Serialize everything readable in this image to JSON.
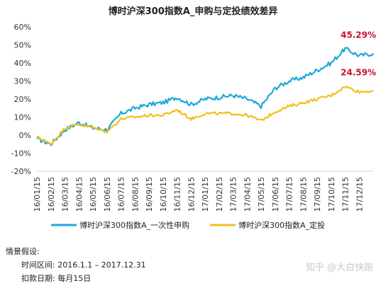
{
  "chart_data": {
    "type": "line",
    "title": "博时沪深300指数A_申购与定投绩效差异",
    "xlabel": "",
    "ylabel": "",
    "ylim": [
      -0.2,
      0.6
    ],
    "yticks": [
      "60%",
      "50%",
      "40%",
      "30%",
      "20%",
      "10%",
      "0%",
      "-10%",
      "-20%"
    ],
    "grid": false,
    "legend_position": "bottom",
    "x": [
      "16/01/15",
      "16/02/15",
      "16/03/15",
      "16/04/15",
      "16/05/15",
      "16/06/15",
      "16/07/15",
      "16/08/15",
      "16/09/15",
      "16/10/15",
      "16/11/15",
      "16/12/15",
      "17/01/15",
      "17/02/15",
      "17/03/15",
      "17/04/15",
      "17/05/15",
      "17/06/15",
      "17/07/15",
      "17/08/15",
      "17/09/15",
      "17/10/15",
      "17/11/15",
      "17/12/15",
      "17/12/31"
    ],
    "xtick_labels": [
      "16/01/15",
      "16/02/15",
      "16/03/15",
      "16/04/15",
      "16/05/15",
      "16/06/15",
      "16/07/15",
      "16/08/15",
      "16/09/15",
      "16/10/15",
      "16/11/15",
      "16/12/15",
      "17/01/15",
      "17/02/15",
      "17/03/15",
      "17/04/15",
      "17/05/15",
      "17/06/15",
      "17/07/15",
      "17/08/15",
      "17/09/15",
      "17/10/15",
      "17/11/15",
      "17/12/15"
    ],
    "series": [
      {
        "name": "博时沪深300指数A_一次性申购",
        "color": "#1fa8d8",
        "values": [
          -0.02,
          -0.05,
          0.03,
          0.07,
          0.04,
          0.03,
          0.12,
          0.15,
          0.17,
          0.18,
          0.21,
          0.17,
          0.2,
          0.21,
          0.22,
          0.2,
          0.16,
          0.26,
          0.3,
          0.32,
          0.36,
          0.4,
          0.48,
          0.44,
          0.4529
        ]
      },
      {
        "name": "博时沪深300指数A_定投",
        "color": "#f2c01e",
        "values": [
          -0.01,
          -0.05,
          0.04,
          0.06,
          0.04,
          0.02,
          0.09,
          0.1,
          0.11,
          0.11,
          0.14,
          0.09,
          0.12,
          0.12,
          0.12,
          0.11,
          0.08,
          0.13,
          0.16,
          0.18,
          0.2,
          0.22,
          0.27,
          0.24,
          0.2459
        ]
      }
    ],
    "end_labels": [
      "45.29%",
      "24.59%"
    ]
  },
  "notes": {
    "heading": "情景假设:",
    "period": "时间区间: 2016.1.1 – 2017.12.31",
    "debit_day": "扣款日期: 每月15日"
  },
  "watermark": "知乎 @大白快跑"
}
